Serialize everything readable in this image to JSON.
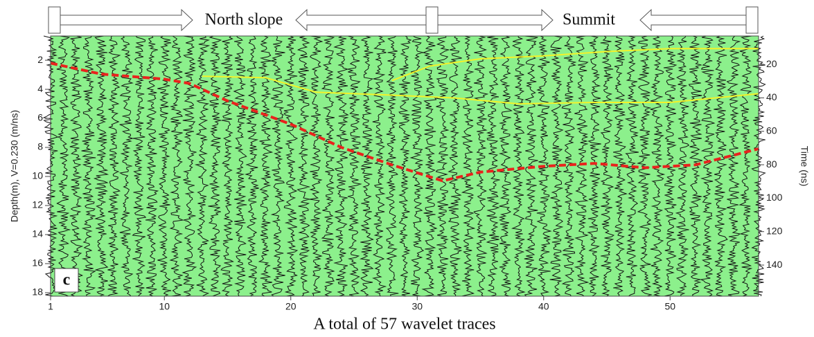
{
  "chart_data": {
    "type": "line",
    "regions": [
      {
        "label": "North slope"
      },
      {
        "label": "Summit"
      }
    ],
    "panel_label": "c",
    "xlabel": "A total of 57 wavelet traces",
    "ylabel": "Depth(m), V=0.230 (m/ns)",
    "y2label": "Time (ns)",
    "background": "#8cf08c",
    "xlim": [
      1,
      57
    ],
    "xticks": [
      1,
      10,
      20,
      30,
      40,
      50
    ],
    "ylim": [
      0.33,
      18.24
    ],
    "yticks": [
      2,
      4,
      6,
      8,
      10,
      12,
      14,
      16,
      18
    ],
    "y2lim": [
      3.0,
      158.6
    ],
    "y2ticks": [
      20,
      40,
      60,
      80,
      100,
      120,
      140
    ],
    "series": [
      {
        "color": "#e8231d",
        "dashed": true,
        "x": [
          1,
          5,
          10,
          12,
          15,
          20,
          24,
          28,
          32,
          35,
          40,
          44,
          48,
          52,
          57
        ],
        "values": [
          2.2,
          2.95,
          3.3,
          3.6,
          4.8,
          6.4,
          8.0,
          9.2,
          10.3,
          9.7,
          9.3,
          9.1,
          9.4,
          9.2,
          8.1
        ]
      },
      {
        "color": "#f2f22a",
        "dashed": false,
        "x": [
          13,
          18,
          22,
          28,
          33,
          38,
          44,
          50,
          57
        ],
        "values": [
          3.1,
          3.2,
          4.2,
          4.4,
          4.6,
          5.0,
          4.9,
          4.9,
          4.3
        ]
      },
      {
        "color": "#f2f22a",
        "dashed": false,
        "x": [
          28,
          31,
          35,
          40,
          45,
          50,
          57
        ],
        "values": [
          3.4,
          2.4,
          1.9,
          1.7,
          1.4,
          1.2,
          1.2
        ]
      }
    ]
  }
}
